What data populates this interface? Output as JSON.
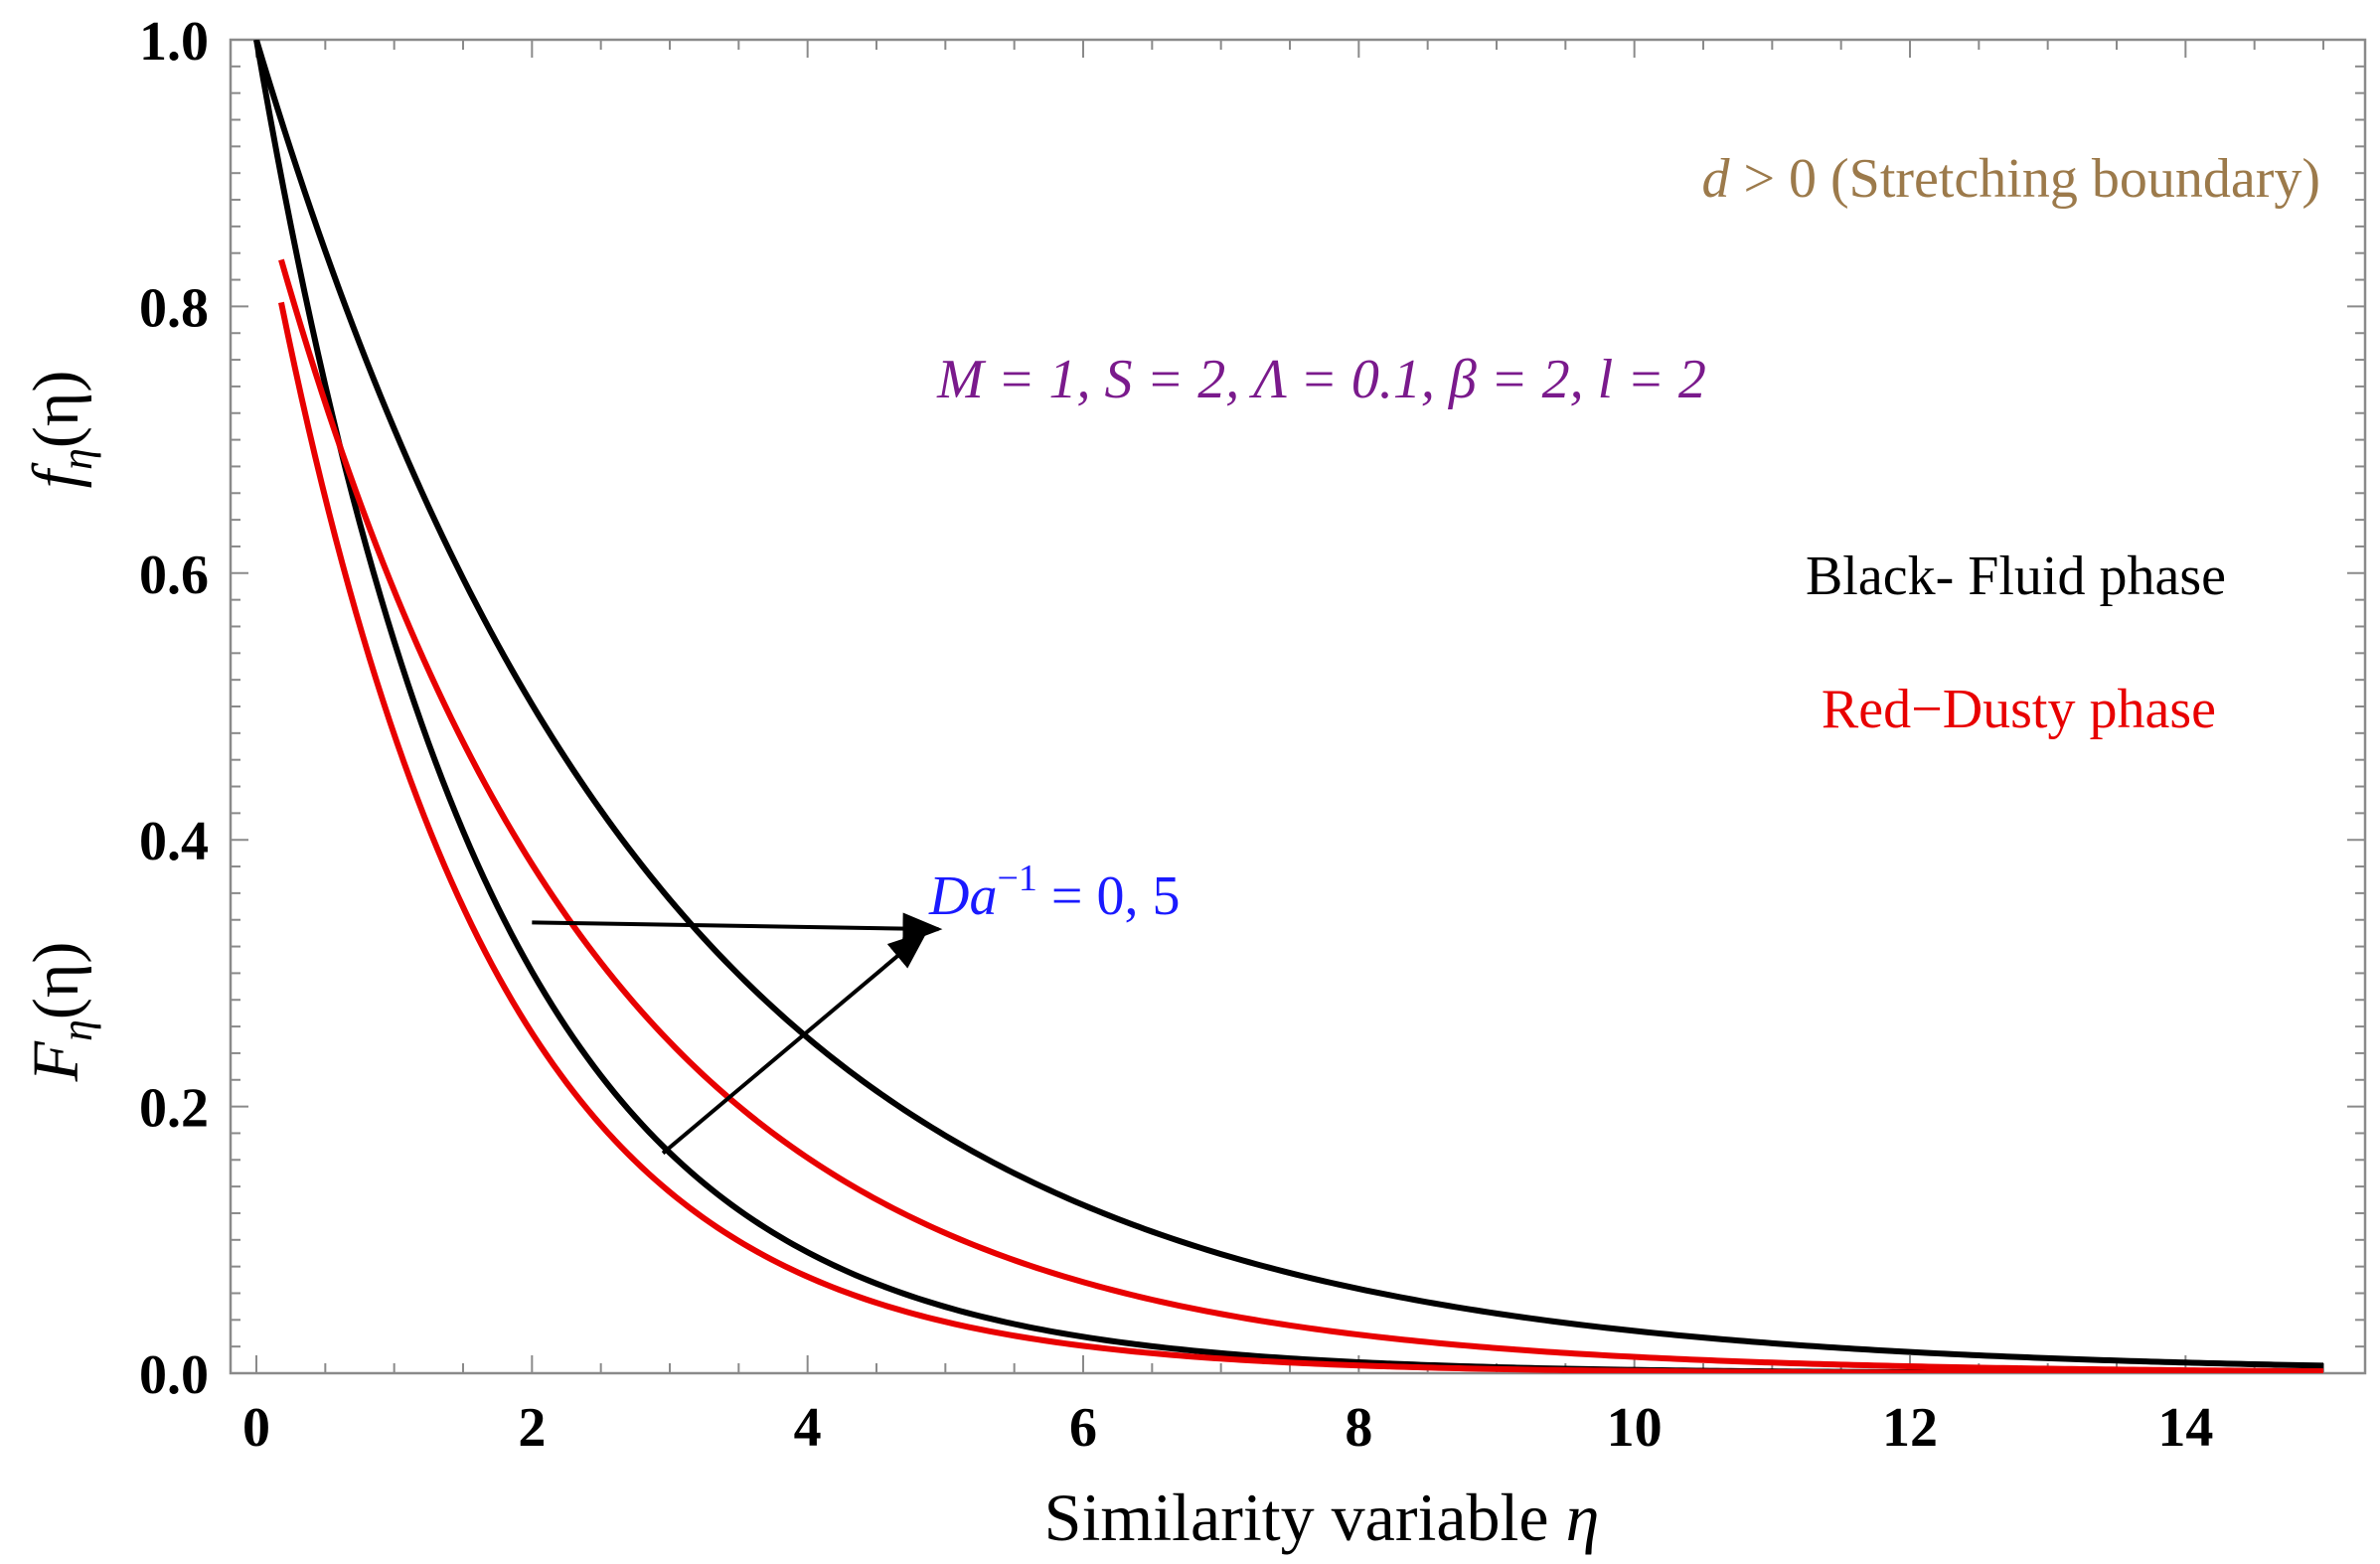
{
  "chart_data": {
    "type": "line",
    "xlabel": "Similarity variable",
    "xlabel_symbol": "η",
    "ylabel_top": {
      "base": "f",
      "sub": "η",
      "arg": "(η)"
    },
    "ylabel_bottom": {
      "base": "F",
      "sub": "η",
      "arg": "(η)"
    },
    "xlim": [
      0,
      15
    ],
    "ylim": [
      0,
      1.0
    ],
    "x_ticks": [
      0,
      2,
      4,
      6,
      8,
      10,
      12,
      14
    ],
    "x_tick_labels": [
      "0",
      "2",
      "4",
      "6",
      "8",
      "10",
      "12",
      "14"
    ],
    "y_ticks": [
      0,
      0.2,
      0.4,
      0.6,
      0.8,
      1.0
    ],
    "y_tick_labels": [
      "0.0",
      "0.2",
      "0.4",
      "0.6",
      "0.8",
      "1.0"
    ],
    "grid": false,
    "series": [
      {
        "name": "Fluid phase, Da^-1 = 0",
        "color": "#000000",
        "x0": 0,
        "y0": 1.0,
        "decay": 0.345
      },
      {
        "name": "Fluid phase, Da^-1 = 5",
        "color": "#000000",
        "x0": 0,
        "y0": 1.0,
        "decay": 0.6
      },
      {
        "name": "Dusty phase, Da^-1 = 0",
        "color": "#e80000",
        "x0": 0.18,
        "y0": 0.835,
        "decay": 0.43
      },
      {
        "name": "Dusty phase, Da^-1 = 5",
        "color": "#e80000",
        "x0": 0.18,
        "y0": 0.803,
        "decay": 0.63
      }
    ],
    "annotations": {
      "boundary": {
        "symbol": "d",
        "rest": " > 0 (Stretching boundary)",
        "color": "#9c7a4b"
      },
      "params": {
        "text": "M = 1, S = 2, Λ = 0.1, β = 2, l = 2",
        "color": "#7a1a8c"
      },
      "legend_black": {
        "text": "Black- Fluid phase",
        "color": "#000000"
      },
      "legend_red": {
        "text": "Red−Dusty phase",
        "color": "#e80000"
      },
      "da_label": {
        "base": "Da",
        "sup": "−1",
        "rest": " = 0, 5",
        "color": "#1a1aff"
      }
    },
    "arrows": [
      {
        "from": [
          2.0,
          0.338
        ],
        "to": [
          4.95,
          0.333
        ]
      },
      {
        "from": [
          2.95,
          0.165
        ],
        "to": [
          4.85,
          0.33
        ]
      }
    ]
  }
}
